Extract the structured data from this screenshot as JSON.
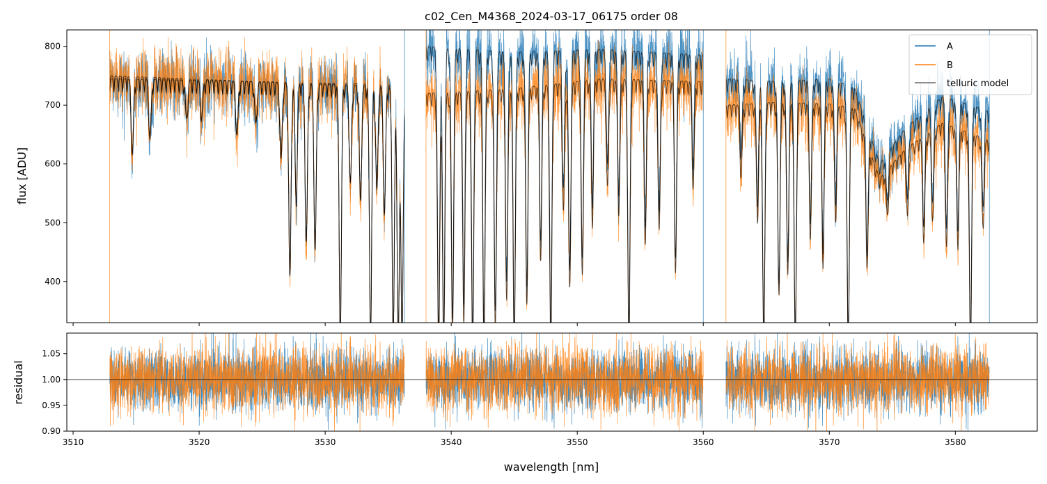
{
  "chart_data": [
    {
      "type": "line",
      "title": "c02_Cen_M4368_2024-03-17_06175  order 08",
      "xlabel": "",
      "ylabel": "flux [ADU]",
      "xlim": [
        3509.5,
        3586.5
      ],
      "ylim": [
        330,
        828
      ],
      "xticks": [
        3510,
        3520,
        3530,
        3540,
        3550,
        3560,
        3570,
        3580
      ],
      "yticks": [
        400,
        500,
        600,
        700,
        800
      ],
      "ytick_labels": [
        "400",
        "500",
        "600",
        "700",
        "800"
      ],
      "segments": [
        [
          3512.9,
          3536.3
        ],
        [
          3538.0,
          3560.0
        ],
        [
          3561.8,
          3582.7
        ]
      ],
      "continuum_A": [
        [
          3513,
          745
        ],
        [
          3536.3,
          735
        ],
        [
          3538.0,
          800
        ],
        [
          3545,
          790
        ],
        [
          3552,
          795
        ],
        [
          3560,
          785
        ],
        [
          3561.8,
          745
        ],
        [
          3566,
          740
        ],
        [
          3570,
          745
        ],
        [
          3572,
          730
        ],
        [
          3574,
          600
        ],
        [
          3576,
          660
        ],
        [
          3579,
          715
        ],
        [
          3582.7,
          690
        ]
      ],
      "continuum_B": [
        [
          3513,
          750
        ],
        [
          3536.3,
          730
        ],
        [
          3538.0,
          720
        ],
        [
          3545,
          728
        ],
        [
          3552,
          745
        ],
        [
          3560,
          740
        ],
        [
          3561.8,
          700
        ],
        [
          3566,
          705
        ],
        [
          3570,
          702
        ],
        [
          3572,
          695
        ],
        [
          3574,
          575
        ],
        [
          3576,
          625
        ],
        [
          3579,
          670
        ],
        [
          3582.7,
          640
        ]
      ],
      "absorption_lines_model": [
        [
          3514.7,
          640
        ],
        [
          3516.1,
          665
        ],
        [
          3519.0,
          700
        ],
        [
          3520.2,
          705
        ],
        [
          3523.0,
          670
        ],
        [
          3524.5,
          690
        ],
        [
          3526.5,
          630
        ],
        [
          3527.2,
          430
        ],
        [
          3527.7,
          560
        ],
        [
          3528.5,
          490
        ],
        [
          3529.2,
          475
        ],
        [
          3531.2,
          330
        ],
        [
          3532.0,
          590
        ],
        [
          3532.8,
          560
        ],
        [
          3533.6,
          330
        ],
        [
          3534.1,
          580
        ],
        [
          3534.7,
          540
        ],
        [
          3535.4,
          330
        ],
        [
          3535.8,
          330
        ],
        [
          3536.1,
          330
        ],
        [
          3539.0,
          330
        ],
        [
          3539.4,
          330
        ],
        [
          3540.1,
          360
        ],
        [
          3541.0,
          380
        ],
        [
          3541.7,
          330
        ],
        [
          3542.6,
          330
        ],
        [
          3543.5,
          370
        ],
        [
          3544.4,
          420
        ],
        [
          3545.0,
          330
        ],
        [
          3546.0,
          420
        ],
        [
          3547.1,
          500
        ],
        [
          3547.9,
          330
        ],
        [
          3548.9,
          580
        ],
        [
          3549.4,
          440
        ],
        [
          3550.4,
          460
        ],
        [
          3551.2,
          560
        ],
        [
          3552.4,
          620
        ],
        [
          3553.3,
          580
        ],
        [
          3554.1,
          330
        ],
        [
          3555.4,
          520
        ],
        [
          3556.5,
          540
        ],
        [
          3557.8,
          470
        ],
        [
          3559.2,
          620
        ],
        [
          3563.0,
          640
        ],
        [
          3564.3,
          560
        ],
        [
          3564.8,
          330
        ],
        [
          3566.0,
          420
        ],
        [
          3566.7,
          460
        ],
        [
          3567.3,
          330
        ],
        [
          3568.5,
          530
        ],
        [
          3569.5,
          480
        ],
        [
          3570.5,
          560
        ],
        [
          3571.5,
          330
        ],
        [
          3573.0,
          470
        ],
        [
          3574.6,
          560
        ],
        [
          3576.2,
          560
        ],
        [
          3577.5,
          520
        ],
        [
          3578.2,
          560
        ],
        [
          3579.3,
          510
        ],
        [
          3580.2,
          520
        ],
        [
          3581.2,
          330
        ],
        [
          3582.2,
          550
        ]
      ],
      "legend": [
        "A",
        "B",
        "telluric model"
      ],
      "legend_position": "upper-right"
    },
    {
      "type": "line",
      "title": "",
      "xlabel": "wavelength [nm]",
      "ylabel": "residual",
      "xlim": [
        3509.5,
        3586.5
      ],
      "ylim": [
        0.9,
        1.09
      ],
      "xticks": [
        3510,
        3520,
        3530,
        3540,
        3550,
        3560,
        3570,
        3580
      ],
      "xtick_labels": [
        "3510",
        "3520",
        "3530",
        "3540",
        "3550",
        "3560",
        "3570",
        "3580"
      ],
      "yticks": [
        0.9,
        0.95,
        1.0,
        1.05
      ],
      "ytick_labels": [
        "0.90",
        "0.95",
        "1.00",
        "1.05"
      ],
      "reference_line": 1.0,
      "segments": [
        [
          3512.9,
          3536.3
        ],
        [
          3538.0,
          3560.0
        ],
        [
          3561.8,
          3582.7
        ]
      ],
      "noise_sigma_A": 0.03,
      "noise_sigma_B": 0.032
    }
  ],
  "colors": {
    "A": "#1f77b4",
    "B": "#ff7f0e",
    "model": "#000000"
  }
}
